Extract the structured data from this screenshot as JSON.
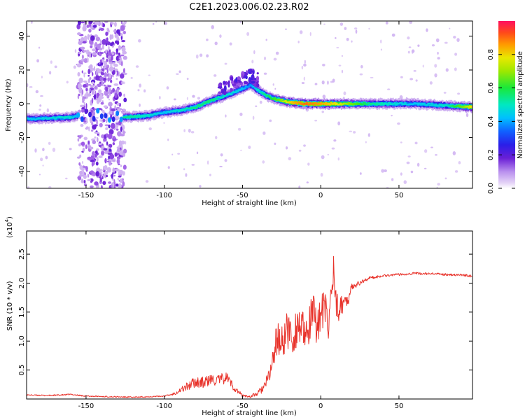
{
  "figure_title": "C2E1.2023.006.02.23.R02",
  "colors": {
    "snr_line": "#e8322a",
    "colormap": [
      "#e6d6f7",
      "#c9a8f0",
      "#9a55e6",
      "#6a1fd6",
      "#2a1ee8",
      "#1060ff",
      "#00c0ff",
      "#00e8c0",
      "#19e83a",
      "#7ee800",
      "#e8e800",
      "#ff9a00",
      "#ff4a1a",
      "#ff1060"
    ]
  },
  "chart_data": [
    {
      "type": "heatmap",
      "title": "",
      "xlabel": "Height of straight line (km)",
      "ylabel": "Frequency (Hz)",
      "xlim": [
        -188,
        97
      ],
      "ylim": [
        -50,
        49
      ],
      "xticks": [
        -150,
        -100,
        -50,
        0,
        50
      ],
      "xtick_labels": [
        "-150",
        "-100",
        "-50",
        "0",
        "50"
      ],
      "yticks": [
        -40,
        -20,
        0,
        20,
        40
      ],
      "ytick_labels": [
        "-40",
        "-20",
        "0",
        "20",
        "40"
      ],
      "colorbar": {
        "label": "Normalized spectral amplitude",
        "range": [
          0,
          1
        ],
        "ticks": [
          0.0,
          0.2,
          0.4,
          0.6,
          0.8
        ],
        "tick_labels": [
          "0.0",
          "0.2",
          "0.4",
          "0.6",
          "0.8"
        ]
      },
      "ridge": {
        "x": [
          -188,
          -160,
          -150,
          -140,
          -126,
          -110,
          -100,
          -90,
          -80,
          -70,
          -60,
          -50,
          -45,
          -40,
          -35,
          -30,
          -20,
          -10,
          0,
          15,
          30,
          60,
          80,
          97
        ],
        "freq": [
          -9,
          -8,
          -6,
          -7,
          -8,
          -7,
          -5,
          -4,
          -2,
          2,
          5,
          9,
          11,
          8,
          5,
          3,
          1,
          0,
          0,
          0,
          0,
          0,
          -1,
          -2
        ],
        "amplitude": [
          0.45,
          0.5,
          0.35,
          0.25,
          0.55,
          0.5,
          0.45,
          0.5,
          0.55,
          0.55,
          0.5,
          0.45,
          0.4,
          0.5,
          0.55,
          0.6,
          0.75,
          0.85,
          0.8,
          0.7,
          0.55,
          0.45,
          0.5,
          0.75
        ]
      },
      "scatter_band": {
        "x_range": [
          -155,
          -125
        ],
        "amplitude_range": [
          0.05,
          0.25
        ]
      }
    },
    {
      "type": "line",
      "title": "",
      "xlabel": "Height of straight line (km)",
      "ylabel": "SNR (10 * v/v)",
      "multiplier_label": "(x10",
      "multiplier_exp": "4",
      "xlim": [
        -188,
        97
      ],
      "ylim": [
        0,
        2.9
      ],
      "xticks": [
        -150,
        -100,
        -50,
        0,
        50
      ],
      "xtick_labels": [
        "-150",
        "-100",
        "-50",
        "0",
        "50"
      ],
      "yticks": [
        0.5,
        1.0,
        1.5,
        2.0,
        2.5
      ],
      "ytick_labels": [
        "0.5",
        "1.0",
        "1.5",
        "2.0",
        "2.5"
      ],
      "series": [
        {
          "x": [
            -188,
            -175,
            -165,
            -160,
            -150,
            -120,
            -100,
            -95,
            -90,
            -85,
            -80,
            -75,
            -70,
            -65,
            -60,
            -55,
            -50,
            -45,
            -40,
            -35,
            -32,
            -30,
            -28,
            -25,
            -22,
            -20,
            -18,
            -15,
            -12,
            -10,
            -8,
            -5,
            -3,
            0,
            3,
            5,
            8,
            10,
            12,
            15,
            18,
            20,
            25,
            30,
            40,
            50,
            60,
            70,
            80,
            90,
            97
          ],
          "y": [
            0.07,
            0.06,
            0.07,
            0.08,
            0.05,
            0.03,
            0.05,
            0.08,
            0.15,
            0.22,
            0.3,
            0.28,
            0.33,
            0.32,
            0.38,
            0.18,
            0.06,
            0.04,
            0.1,
            0.25,
            0.5,
            0.75,
            1.05,
            0.95,
            1.15,
            1.2,
            1.0,
            1.3,
            1.25,
            0.95,
            1.2,
            1.5,
            1.3,
            1.45,
            1.55,
            1.2,
            2.3,
            1.6,
            1.55,
            1.7,
            1.75,
            1.95,
            2.0,
            2.08,
            2.13,
            2.15,
            2.17,
            2.16,
            2.15,
            2.14,
            2.12
          ],
          "noise_amplitude": [
            0.01,
            0.01,
            0.01,
            0.01,
            0.01,
            0.01,
            0.01,
            0.02,
            0.05,
            0.08,
            0.1,
            0.1,
            0.1,
            0.1,
            0.1,
            0.06,
            0.02,
            0.02,
            0.05,
            0.1,
            0.2,
            0.25,
            0.3,
            0.3,
            0.35,
            0.35,
            0.35,
            0.35,
            0.35,
            0.35,
            0.35,
            0.35,
            0.35,
            0.35,
            0.35,
            0.35,
            0.3,
            0.25,
            0.2,
            0.15,
            0.1,
            0.06,
            0.04,
            0.03,
            0.02,
            0.02,
            0.02,
            0.02,
            0.02,
            0.02,
            0.02
          ]
        }
      ]
    }
  ]
}
